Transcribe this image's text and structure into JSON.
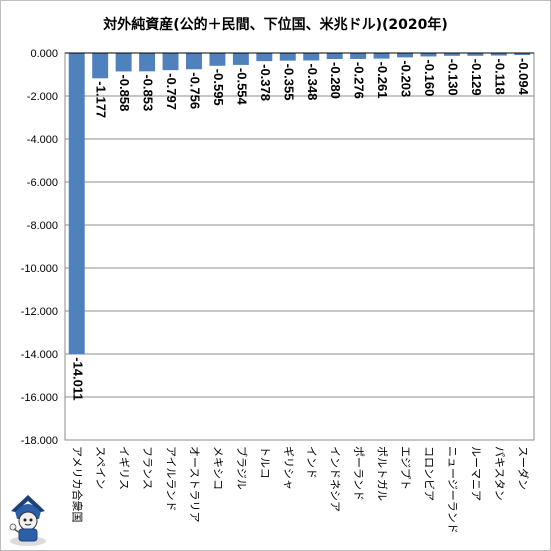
{
  "chart_data": {
    "type": "bar",
    "title": "対外純資産(公的＋民間、下位国、米兆ドル)(2020年)",
    "categories": [
      "アメリカ合衆国",
      "スペイン",
      "イギリス",
      "フランス",
      "アイルランド",
      "オーストラリア",
      "メキシコ",
      "ブラジル",
      "トルコ",
      "ギリシャ",
      "インド",
      "インドネシア",
      "ポーランド",
      "ポルトガル",
      "エジプト",
      "コロンビア",
      "ニュージーランド",
      "ルーマニア",
      "パキスタン",
      "スーダン"
    ],
    "values": [
      -14.011,
      -1.177,
      -0.858,
      -0.853,
      -0.797,
      -0.756,
      -0.595,
      -0.554,
      -0.378,
      -0.355,
      -0.348,
      -0.28,
      -0.276,
      -0.261,
      -0.203,
      -0.16,
      -0.13,
      -0.129,
      -0.118,
      -0.094
    ],
    "value_labels": [
      "-14.011",
      "-1.177",
      "-0.858",
      "-0.853",
      "-0.797",
      "-0.756",
      "-0.595",
      "-0.554",
      "-0.378",
      "-0.355",
      "-0.348",
      "-0.280",
      "-0.276",
      "-0.261",
      "-0.203",
      "-0.160",
      "-0.130",
      "-0.129",
      "-0.118",
      "-0.094"
    ],
    "ylim": [
      -18,
      0
    ],
    "yticks": [
      0,
      -2,
      -4,
      -6,
      -8,
      -10,
      -12,
      -14,
      -16,
      -18
    ],
    "ytick_labels": [
      "0.000",
      "-2.000",
      "-4.000",
      "-6.000",
      "-8.000",
      "-10.000",
      "-12.000",
      "-14.000",
      "-16.000",
      "-18.000"
    ],
    "grid": true,
    "bar_color": "#4f81bd",
    "grid_color": "#8c8c8c"
  }
}
